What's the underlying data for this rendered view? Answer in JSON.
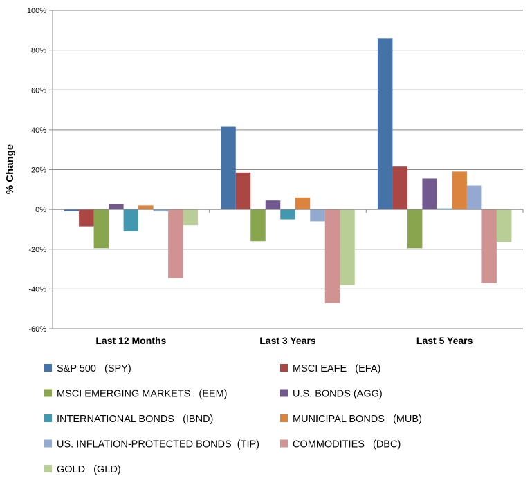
{
  "chart_data": {
    "type": "bar",
    "title": "",
    "xlabel": "",
    "ylabel": "% Change",
    "ylim": [
      -60,
      100
    ],
    "yticks": [
      -60,
      -40,
      -20,
      0,
      20,
      40,
      60,
      80,
      100
    ],
    "ytick_labels": [
      "-60%",
      "-40%",
      "-20%",
      "0%",
      "20%",
      "40%",
      "60%",
      "80%",
      "100%"
    ],
    "grid": true,
    "legend_position": "bottom",
    "categories": [
      "Last 12 Months",
      "Last 3 Years",
      "Last 5 Years"
    ],
    "series": [
      {
        "name": "S&P 500   (SPY)",
        "color": "#4572A7",
        "values": [
          -1,
          41.5,
          86
        ]
      },
      {
        "name": "MSCI EAFE   (EFA)",
        "color": "#AA4643",
        "values": [
          -8.5,
          18.5,
          21.5
        ]
      },
      {
        "name": "MSCI EMERGING MARKETS   (EEM)",
        "color": "#89A54E",
        "values": [
          -19.5,
          -16,
          -19.5
        ]
      },
      {
        "name": "U.S. BONDS (AGG)",
        "color": "#71588F",
        "values": [
          2.5,
          4.5,
          15.5
        ]
      },
      {
        "name": "INTERNATIONAL BONDS   (IBND)",
        "color": "#4198AF",
        "values": [
          -11,
          -5,
          0.5
        ]
      },
      {
        "name": "MUNICIPAL BONDS   (MUB)",
        "color": "#DB843D",
        "values": [
          2,
          6,
          19
        ]
      },
      {
        "name": "US. INFLATION-PROTECTED BONDS  (TIP)",
        "color": "#93A9CF",
        "values": [
          -1,
          -6,
          12
        ]
      },
      {
        "name": "COMMODITIES   (DBC)",
        "color": "#D19392",
        "values": [
          -34.5,
          -47,
          -37
        ]
      },
      {
        "name": "GOLD   (GLD)",
        "color": "#B9CD96",
        "values": [
          -8,
          -38,
          -16.5
        ]
      }
    ]
  }
}
